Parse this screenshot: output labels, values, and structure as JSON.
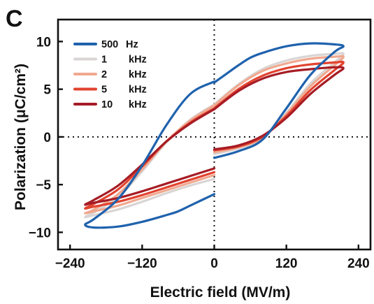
{
  "chart_data": {
    "type": "line",
    "panel_label": "C",
    "xlabel": "Electric field (MV/m)",
    "ylabel": "Polarization (μC/cm²)",
    "xlim": [
      -260,
      260
    ],
    "ylim": [
      -11.8,
      12.3
    ],
    "xticks": [
      -240,
      -120,
      0,
      120,
      240
    ],
    "yticks": [
      10,
      5,
      0,
      -5,
      -10
    ],
    "xtick_labels": [
      "−240",
      "−120",
      "0",
      "120",
      "240"
    ],
    "ytick_labels": [
      "10",
      "5",
      "0",
      "−5",
      "−10"
    ],
    "reference_lines": {
      "x": 0,
      "y": 0,
      "style": "dotted"
    },
    "legend_position": "top-left",
    "series": [
      {
        "name": "500 Hz",
        "freq_value": "500",
        "freq_unit": "Hz",
        "color": "#1f62ad",
        "branches": [
          {
            "x": [
              0,
              40,
              80,
              120,
              160,
              200,
              215,
              200,
              160,
              120,
              80,
              60,
              40,
              20,
              0
            ],
            "y": [
              -2.2,
              -1.5,
              -0.3,
              3.0,
              6.5,
              8.9,
              9.5,
              9.7,
              9.8,
              9.5,
              8.8,
              8.3,
              7.5,
              6.6,
              5.7
            ]
          },
          {
            "x": [
              0,
              -40,
              -80,
              -120,
              -160,
              -200,
              -215,
              -200,
              -160,
              -120,
              -80,
              -60,
              -40,
              -20,
              0
            ],
            "y": [
              5.8,
              4.5,
              1.2,
              -3.0,
              -6.5,
              -8.6,
              -9.2,
              -9.5,
              -9.4,
              -8.9,
              -8.2,
              -7.8,
              -7.2,
              -6.6,
              -6.0
            ]
          }
        ]
      },
      {
        "name": "1 kHz",
        "freq_value": "1",
        "freq_unit": "kHz",
        "color": "#d9d5d4",
        "branches": [
          {
            "x": [
              0,
              40,
              80,
              120,
              160,
              200,
              215,
              200,
              160,
              120,
              80,
              40,
              0
            ],
            "y": [
              -1.8,
              -1.2,
              -0.2,
              2.5,
              5.6,
              7.8,
              8.7,
              8.7,
              8.5,
              8.0,
              7.1,
              5.5,
              3.4
            ]
          },
          {
            "x": [
              0,
              -40,
              -80,
              -120,
              -160,
              -200,
              -215,
              -200,
              -160,
              -120,
              -80,
              -40,
              0
            ],
            "y": [
              3.4,
              1.8,
              -0.6,
              -3.6,
              -6.3,
              -7.9,
              -8.4,
              -8.2,
              -7.6,
              -6.8,
              -5.9,
              -5.1,
              -4.4
            ]
          }
        ]
      },
      {
        "name": "2 kHz",
        "freq_value": "2",
        "freq_unit": "kHz",
        "color": "#f0a88f",
        "branches": [
          {
            "x": [
              0,
              40,
              80,
              120,
              160,
              200,
              215,
              200,
              160,
              120,
              80,
              40,
              0
            ],
            "y": [
              -1.6,
              -1.1,
              -0.1,
              2.4,
              5.3,
              7.5,
              8.4,
              8.4,
              8.2,
              7.7,
              6.9,
              5.4,
              3.3
            ]
          },
          {
            "x": [
              0,
              -40,
              -80,
              -120,
              -160,
              -200,
              -215,
              -200,
              -160,
              -120,
              -80,
              -40,
              0
            ],
            "y": [
              3.3,
              1.7,
              -0.5,
              -3.4,
              -6.0,
              -7.6,
              -8.0,
              -7.8,
              -7.2,
              -6.4,
              -5.6,
              -4.8,
              -4.0
            ]
          }
        ]
      },
      {
        "name": "5 kHz",
        "freq_value": "5",
        "freq_unit": "kHz",
        "color": "#e2432f",
        "branches": [
          {
            "x": [
              0,
              40,
              80,
              120,
              160,
              200,
              215,
              200,
              160,
              120,
              80,
              40,
              0
            ],
            "y": [
              -1.4,
              -1.0,
              0.0,
              2.2,
              4.9,
              7.0,
              7.8,
              7.8,
              7.6,
              7.2,
              6.4,
              5.0,
              3.0
            ]
          },
          {
            "x": [
              0,
              -40,
              -80,
              -120,
              -160,
              -200,
              -215,
              -200,
              -160,
              -120,
              -80,
              -40,
              0
            ],
            "y": [
              3.0,
              1.5,
              -0.5,
              -3.1,
              -5.5,
              -7.0,
              -7.5,
              -7.3,
              -6.8,
              -6.1,
              -5.3,
              -4.5,
              -3.7
            ]
          }
        ]
      },
      {
        "name": "10 kHz",
        "freq_value": "10",
        "freq_unit": "kHz",
        "color": "#a61c25",
        "branches": [
          {
            "x": [
              0,
              40,
              80,
              120,
              160,
              200,
              215,
              200,
              160,
              120,
              80,
              40,
              0
            ],
            "y": [
              -1.3,
              -0.9,
              0.1,
              2.0,
              4.5,
              6.5,
              7.2,
              7.3,
              7.1,
              6.8,
              6.1,
              4.8,
              2.9
            ]
          },
          {
            "x": [
              0,
              -40,
              -80,
              -120,
              -160,
              -200,
              -215,
              -200,
              -160,
              -120,
              -80,
              -40,
              0
            ],
            "y": [
              2.9,
              1.4,
              -0.5,
              -2.9,
              -5.1,
              -6.6,
              -7.1,
              -6.9,
              -6.4,
              -5.7,
              -4.9,
              -4.1,
              -3.3
            ]
          }
        ]
      }
    ]
  }
}
